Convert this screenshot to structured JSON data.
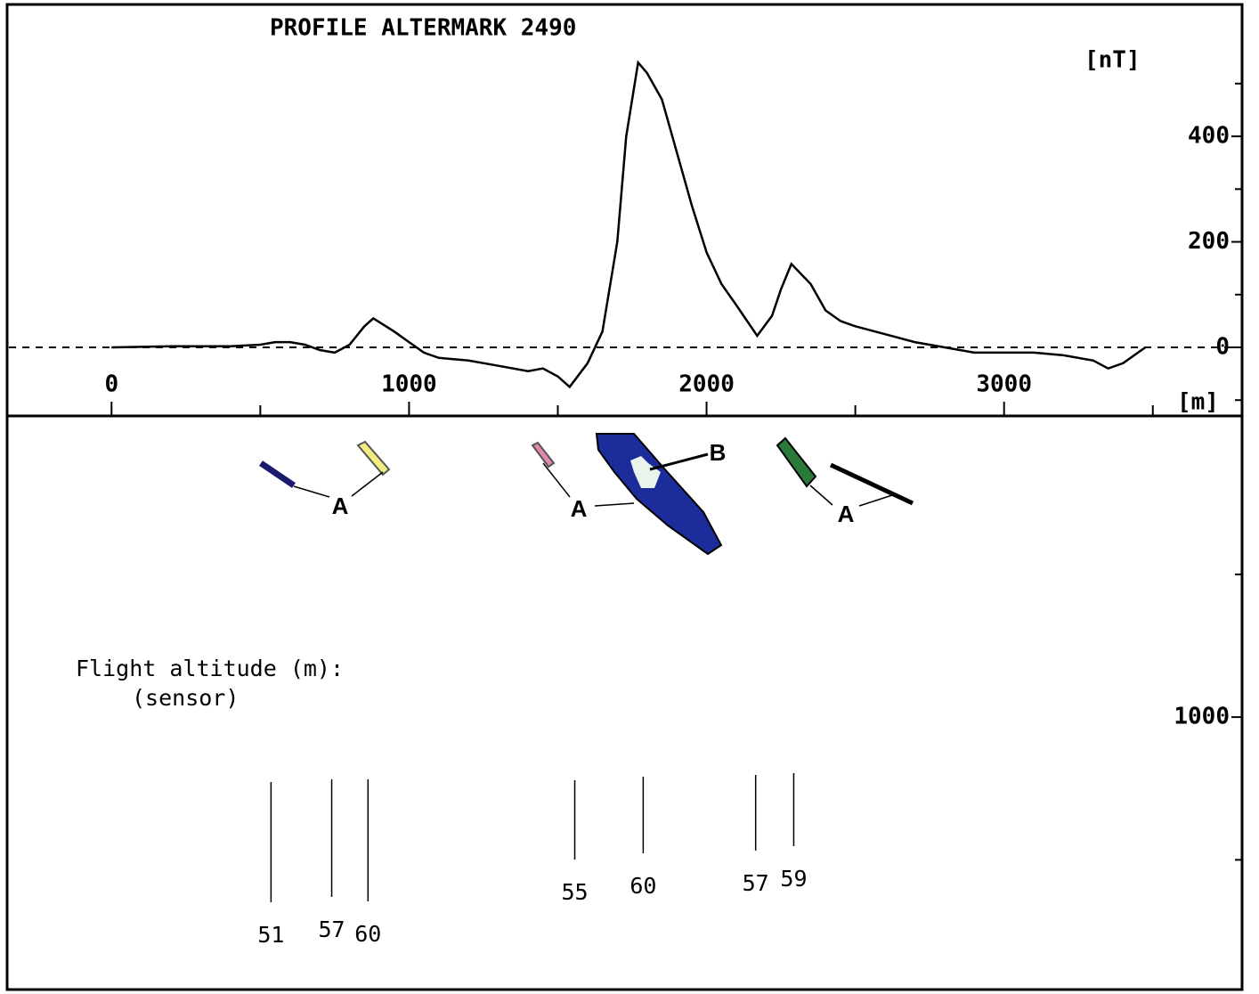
{
  "chart_data": [
    {
      "type": "line",
      "title": "PROFILE ALTERMARK 2490",
      "ylabel": "[nT]",
      "xlabel": "[m]",
      "x": [
        0,
        200,
        400,
        500,
        550,
        600,
        650,
        700,
        750,
        800,
        850,
        880,
        950,
        1000,
        1050,
        1100,
        1200,
        1300,
        1400,
        1450,
        1500,
        1540,
        1600,
        1650,
        1700,
        1730,
        1770,
        1800,
        1850,
        1900,
        1950,
        2000,
        2050,
        2100,
        2170,
        2220,
        2250,
        2285,
        2350,
        2400,
        2450,
        2500,
        2600,
        2700,
        2800,
        2900,
        3000,
        3100,
        3200,
        3300,
        3350,
        3400,
        3450,
        3475
      ],
      "values": [
        0,
        2,
        2,
        5,
        10,
        10,
        5,
        -5,
        -10,
        5,
        40,
        55,
        30,
        10,
        -10,
        -20,
        -25,
        -35,
        -45,
        -40,
        -55,
        -75,
        -30,
        30,
        200,
        400,
        540,
        520,
        470,
        370,
        270,
        180,
        120,
        80,
        22,
        60,
        110,
        158,
        120,
        70,
        50,
        40,
        25,
        10,
        0,
        -10,
        -10,
        -10,
        -15,
        -25,
        -40,
        -30,
        -10,
        0
      ],
      "color": "#000000",
      "zero_line": true,
      "xlim": [
        -345,
        3800
      ],
      "ylim": [
        -130,
        650
      ],
      "xticks": [
        0,
        1000,
        2000,
        3000
      ],
      "xminor_ticks": [
        500,
        1500,
        2500,
        3500
      ],
      "yticks": [
        0,
        200,
        400
      ],
      "yminor_ticks": [
        -100,
        100,
        300,
        500
      ]
    },
    {
      "type": "section",
      "ylim": [
        1970,
        -55
      ],
      "yticks": [
        1000
      ],
      "yminor_ticks": [
        500,
        1500
      ],
      "annotations": [
        "A",
        "A",
        "A",
        "B"
      ],
      "altitude_title": "Flight altitude (m):",
      "altitude_subtitle": "(sensor)",
      "flight_x": [
        536,
        740,
        862,
        1557,
        1787,
        2165,
        2293
      ],
      "flight_altitudes": [
        51,
        57,
        60,
        55,
        60,
        57,
        59
      ]
    }
  ]
}
